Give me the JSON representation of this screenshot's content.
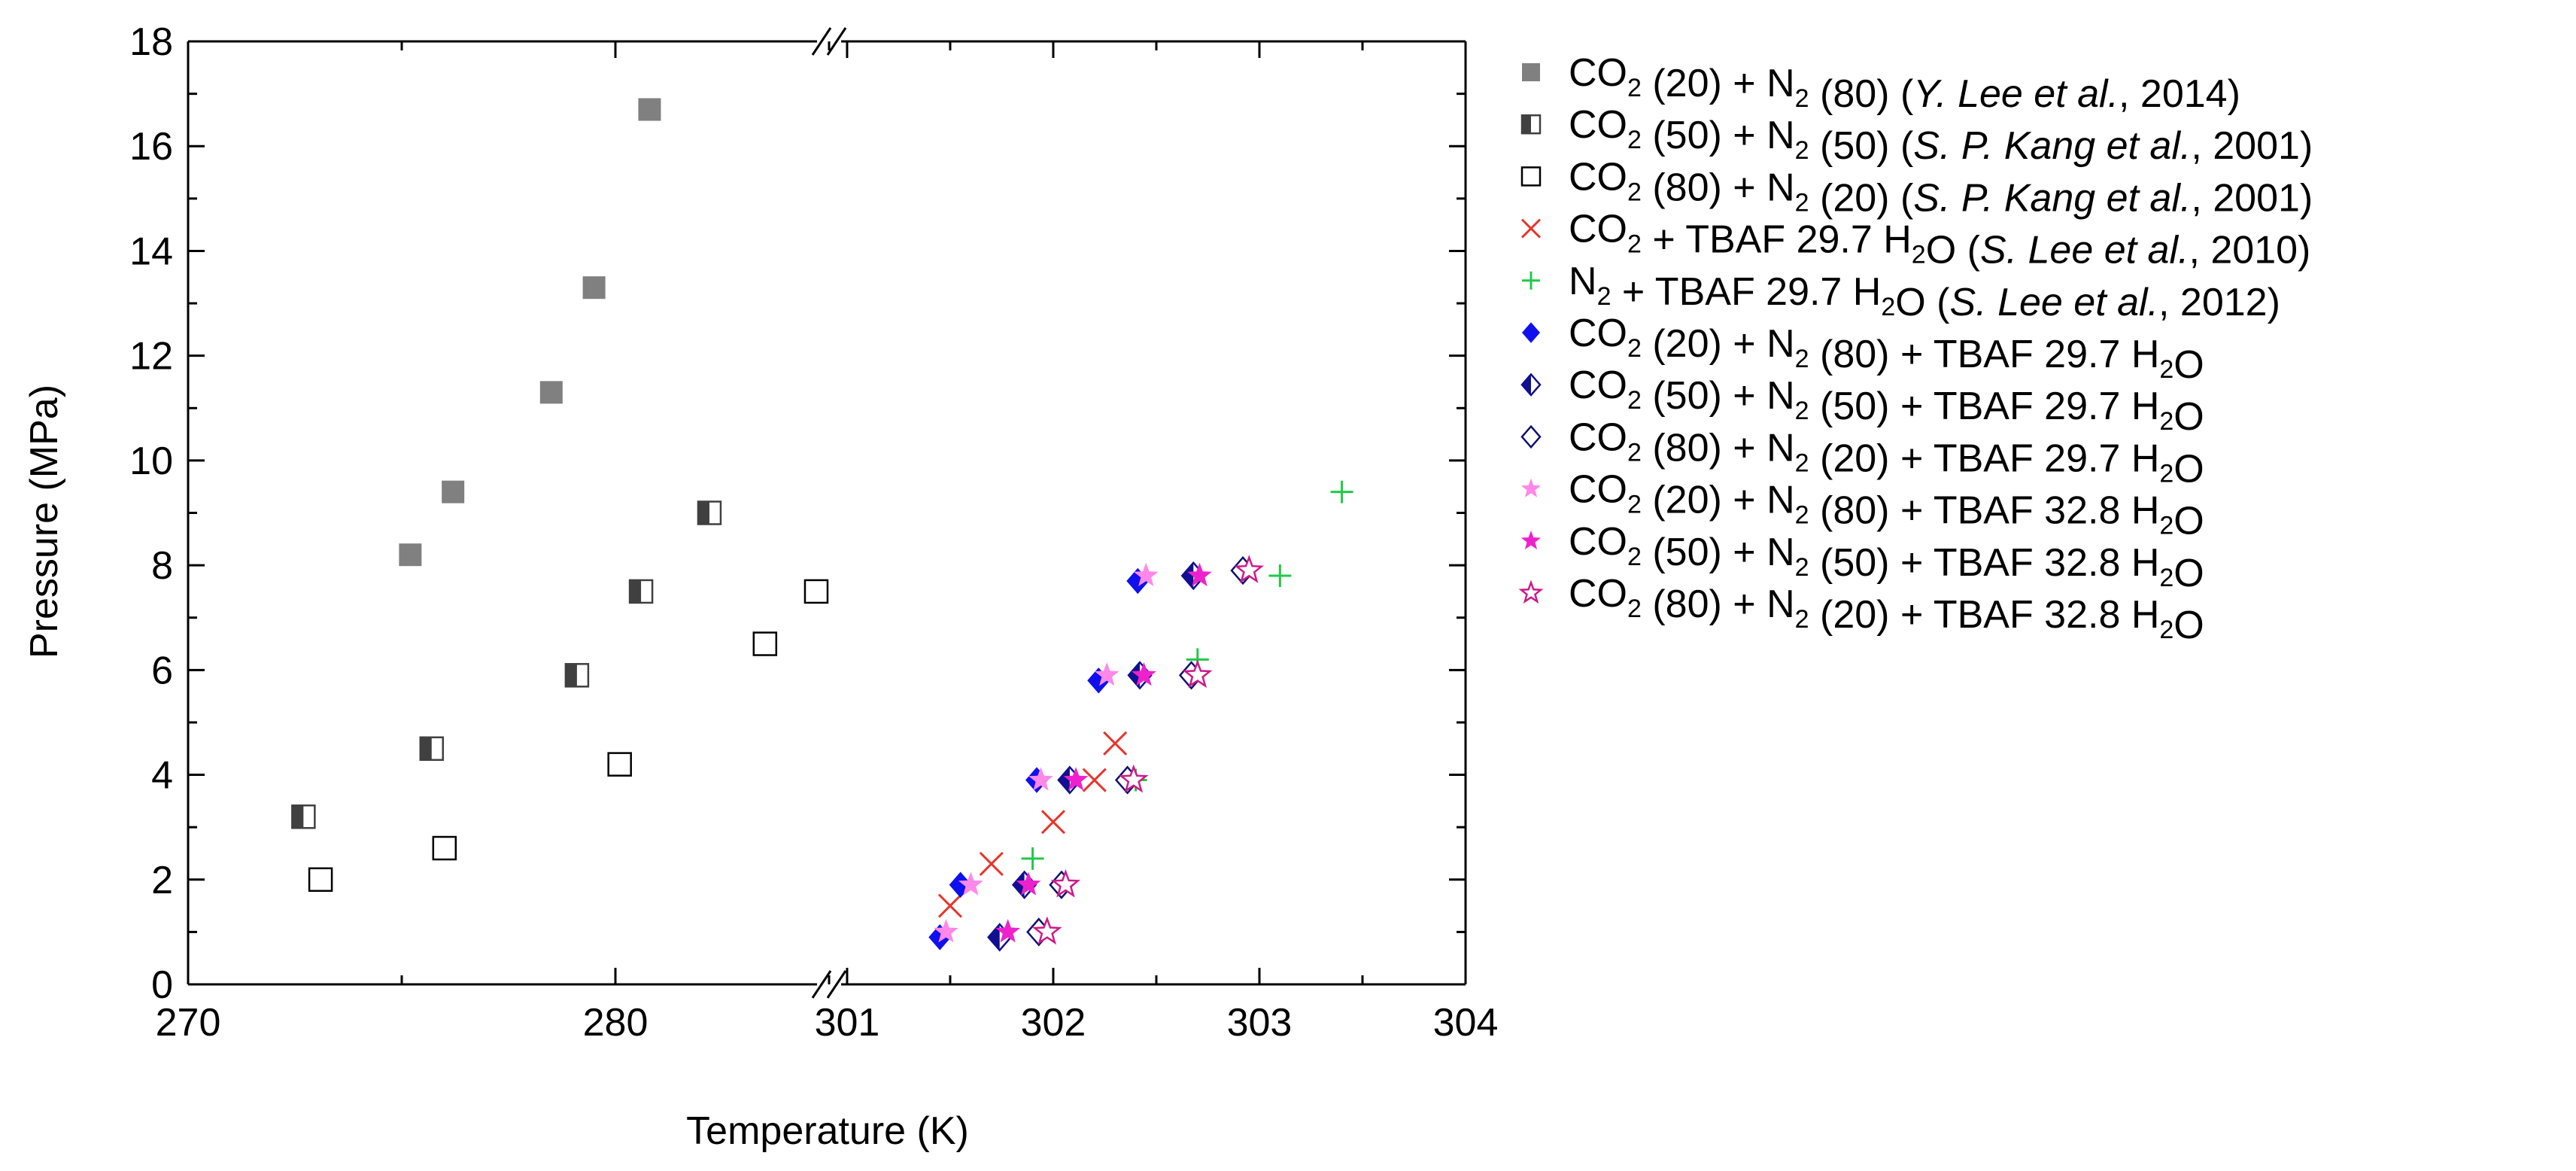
{
  "chart_data": {
    "type": "scatter",
    "xlabel": "Temperature (K)",
    "ylabel": "Pressure (MPa)",
    "ylim": [
      0,
      18
    ],
    "y_ticks": [
      "0",
      "2",
      "4",
      "6",
      "8",
      "10",
      "12",
      "14",
      "16",
      "18"
    ],
    "x_axis_broken": true,
    "x_segments": [
      {
        "range": [
          270,
          285
        ],
        "tick_labels": [
          "270",
          "280"
        ]
      },
      {
        "range": [
          300.96,
          304
        ],
        "tick_labels": [
          "301",
          "302",
          "303",
          "304"
        ]
      }
    ],
    "grid": false,
    "legend_position": "right",
    "series": [
      {
        "name": "CO2 (20) + N2 (80) (Y. Lee et al., 2014)",
        "legend": [
          [
            "CO",
            ""
          ],
          [
            "2",
            "sub"
          ],
          [
            " (20) + N",
            ""
          ],
          [
            "2",
            "sub"
          ],
          [
            " (80) (",
            ""
          ],
          [
            "Y. Lee et al.",
            "it"
          ],
          [
            ", 2014)",
            ""
          ]
        ],
        "marker": "square-filled",
        "color": "#808080",
        "points": [
          [
            275.2,
            8.2
          ],
          [
            276.2,
            9.4
          ],
          [
            278.5,
            11.3
          ],
          [
            279.5,
            13.3
          ],
          [
            280.8,
            16.7
          ]
        ]
      },
      {
        "name": "CO2 (50) + N2 (50) (S. P. Kang et al., 2001)",
        "legend": [
          [
            "CO",
            ""
          ],
          [
            "2",
            "sub"
          ],
          [
            " (50) + N",
            ""
          ],
          [
            "2",
            "sub"
          ],
          [
            " (50) (",
            ""
          ],
          [
            "S. P. Kang et al.",
            "it"
          ],
          [
            ", 2001)",
            ""
          ]
        ],
        "marker": "square-half",
        "color": "#404040",
        "points": [
          [
            272.7,
            3.2
          ],
          [
            275.7,
            4.5
          ],
          [
            279.1,
            5.9
          ],
          [
            280.6,
            7.5
          ],
          [
            282.2,
            9.0
          ]
        ]
      },
      {
        "name": "CO2 (80) + N2 (20) (S. P. Kang et al., 2001)",
        "legend": [
          [
            "CO",
            ""
          ],
          [
            "2",
            "sub"
          ],
          [
            " (80) + N",
            ""
          ],
          [
            "2",
            "sub"
          ],
          [
            " (20) (",
            ""
          ],
          [
            "S. P. Kang et al.",
            "it"
          ],
          [
            ", 2001)",
            ""
          ]
        ],
        "marker": "square-open",
        "color": "#000000",
        "points": [
          [
            273.1,
            2.0
          ],
          [
            276.0,
            2.6
          ],
          [
            280.1,
            4.2
          ],
          [
            283.5,
            6.5
          ],
          [
            284.7,
            7.5
          ]
        ]
      },
      {
        "name": "CO2 + TBAF 29.7 H2O (S. Lee et al., 2010)",
        "legend": [
          [
            "CO",
            ""
          ],
          [
            "2",
            "sub"
          ],
          [
            " + TBAF 29.7 H",
            ""
          ],
          [
            "2",
            "sub"
          ],
          [
            "O (",
            ""
          ],
          [
            "S. Lee et al.",
            "it"
          ],
          [
            ", 2010)",
            ""
          ]
        ],
        "marker": "x",
        "color": "#e8342c",
        "points": [
          [
            301.5,
            1.5
          ],
          [
            301.7,
            2.3
          ],
          [
            302.0,
            3.1
          ],
          [
            302.2,
            3.9
          ],
          [
            302.3,
            4.6
          ]
        ]
      },
      {
        "name": "N2 + TBAF 29.7 H2O (S. Lee et al., 2012)",
        "legend": [
          [
            "N",
            ""
          ],
          [
            "2",
            "sub"
          ],
          [
            " + TBAF 29.7 H",
            ""
          ],
          [
            "2",
            "sub"
          ],
          [
            "O (",
            ""
          ],
          [
            "S. Lee et al.",
            "it"
          ],
          [
            ", 2012)",
            ""
          ]
        ],
        "marker": "plus",
        "color": "#22c84a",
        "points": [
          [
            301.9,
            2.4
          ],
          [
            302.4,
            3.9
          ],
          [
            302.7,
            6.2
          ],
          [
            303.1,
            7.8
          ],
          [
            303.4,
            9.4
          ]
        ]
      },
      {
        "name": "CO2 (20) + N2 (80) + TBAF 29.7 H2O",
        "legend": [
          [
            "CO",
            ""
          ],
          [
            "2",
            "sub"
          ],
          [
            " (20) + N",
            ""
          ],
          [
            "2",
            "sub"
          ],
          [
            " (80) + TBAF 29.7 H",
            ""
          ],
          [
            "2",
            "sub"
          ],
          [
            "O",
            ""
          ]
        ],
        "marker": "diamond-filled",
        "color": "#1010ee",
        "points": [
          [
            301.45,
            0.9
          ],
          [
            301.55,
            1.9
          ],
          [
            301.92,
            3.9
          ],
          [
            302.22,
            5.8
          ],
          [
            302.41,
            7.7
          ]
        ]
      },
      {
        "name": "CO2 (50) + N2 (50) + TBAF 29.7 H2O",
        "legend": [
          [
            "CO",
            ""
          ],
          [
            "2",
            "sub"
          ],
          [
            " (50) + N",
            ""
          ],
          [
            "2",
            "sub"
          ],
          [
            " (50) + TBAF 29.7 H",
            ""
          ],
          [
            "2",
            "sub"
          ],
          [
            "O",
            ""
          ]
        ],
        "marker": "diamond-half",
        "color": "#101090",
        "points": [
          [
            301.74,
            0.9
          ],
          [
            301.86,
            1.9
          ],
          [
            302.08,
            3.9
          ],
          [
            302.42,
            5.9
          ],
          [
            302.68,
            7.8
          ]
        ]
      },
      {
        "name": "CO2 (80) + N2 (20) + TBAF 29.7 H2O",
        "legend": [
          [
            "CO",
            ""
          ],
          [
            "2",
            "sub"
          ],
          [
            " (80) + N",
            ""
          ],
          [
            "2",
            "sub"
          ],
          [
            " (20) + TBAF 29.7 H",
            ""
          ],
          [
            "2",
            "sub"
          ],
          [
            "O",
            ""
          ]
        ],
        "marker": "diamond-open",
        "color": "#101070",
        "points": [
          [
            301.93,
            1.0
          ],
          [
            302.04,
            1.9
          ],
          [
            302.36,
            3.9
          ],
          [
            302.67,
            5.9
          ],
          [
            302.92,
            7.9
          ]
        ]
      },
      {
        "name": "CO2 (20) + N2 (80) + TBAF 32.8 H2O",
        "legend": [
          [
            "CO",
            ""
          ],
          [
            "2",
            "sub"
          ],
          [
            " (20) + N",
            ""
          ],
          [
            "2",
            "sub"
          ],
          [
            " (80) + TBAF 32.8 H",
            ""
          ],
          [
            "2",
            "sub"
          ],
          [
            "O",
            ""
          ]
        ],
        "marker": "star-filled",
        "color": "#ff88e8",
        "points": [
          [
            301.48,
            1.0
          ],
          [
            301.6,
            1.9
          ],
          [
            301.94,
            3.9
          ],
          [
            302.26,
            5.9
          ],
          [
            302.45,
            7.8
          ]
        ]
      },
      {
        "name": "CO2 (50) + N2 (50) + TBAF 32.8 H2O",
        "legend": [
          [
            "CO",
            ""
          ],
          [
            "2",
            "sub"
          ],
          [
            " (50) + N",
            ""
          ],
          [
            "2",
            "sub"
          ],
          [
            " (50) + TBAF 32.8 H",
            ""
          ],
          [
            "2",
            "sub"
          ],
          [
            "O",
            ""
          ]
        ],
        "marker": "star-filled",
        "color": "#ee22cc",
        "points": [
          [
            301.78,
            1.0
          ],
          [
            301.88,
            1.9
          ],
          [
            302.11,
            3.9
          ],
          [
            302.44,
            5.9
          ],
          [
            302.71,
            7.8
          ]
        ]
      },
      {
        "name": "CO2 (80) + N2 (20) + TBAF 32.8 H2O",
        "legend": [
          [
            "CO",
            ""
          ],
          [
            "2",
            "sub"
          ],
          [
            " (80) + N",
            ""
          ],
          [
            "2",
            "sub"
          ],
          [
            " (20) + TBAF 32.8 H",
            ""
          ],
          [
            "2",
            "sub"
          ],
          [
            "O",
            ""
          ]
        ],
        "marker": "star-open",
        "color": "#cc1a8a",
        "points": [
          [
            301.97,
            1.0
          ],
          [
            302.06,
            1.9
          ],
          [
            302.39,
            3.9
          ],
          [
            302.7,
            5.9
          ],
          [
            302.95,
            7.9
          ]
        ]
      }
    ]
  }
}
